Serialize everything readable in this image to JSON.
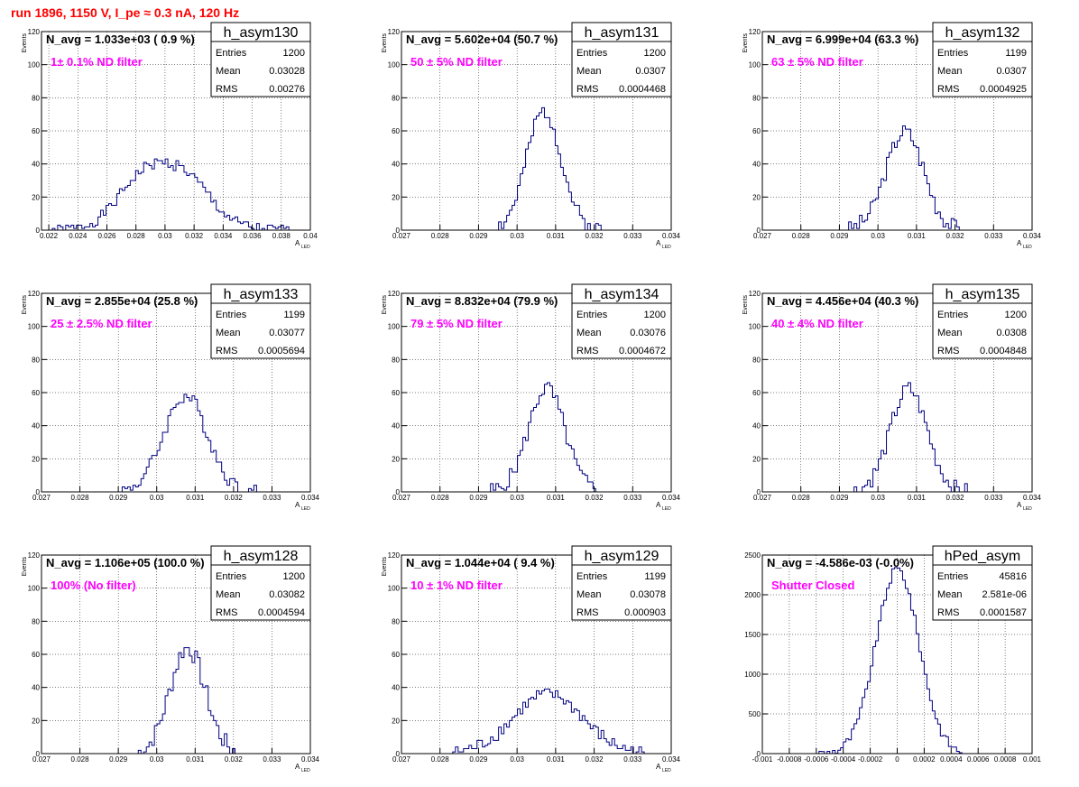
{
  "title": "run 1896,  1150 V, I_pe ≈ 0.3 nA, 120 Hz",
  "colors": {
    "title": "#ff0000",
    "line": "#000080",
    "annotation": "#ff00ff",
    "grid": "#000000"
  },
  "chart_data": [
    {
      "type": "histogram",
      "name": "h_asym130",
      "navg": "N_avg = 1.033e+03 ( 0.9 %)",
      "filter": "1± 0.1% ND filter",
      "stats": {
        "entries": "1200",
        "mean": "0.03028",
        "rms": "0.00276"
      },
      "xlim": [
        0.0215,
        0.04
      ],
      "ylim": [
        0,
        120
      ],
      "xticks": [
        0.022,
        0.024,
        0.026,
        0.028,
        0.03,
        0.032,
        0.034,
        0.036,
        0.038,
        0.04
      ],
      "xticklabels": [
        "0.022",
        "0.024",
        "0.026",
        "0.028",
        "0.03",
        "0.032",
        "0.034",
        "0.036",
        "0.038",
        "0.04"
      ],
      "yticks": [
        0,
        20,
        40,
        60,
        80,
        100,
        120
      ],
      "yticklabels": [
        "0",
        "20",
        "40",
        "60",
        "80",
        "100",
        "120"
      ],
      "xlabel": "A",
      "xlabel_sub": "LED",
      "ylabel": "Events",
      "shape": {
        "kind": "double",
        "c1": 0.0285,
        "s1": 0.0018,
        "a1": 30,
        "c2": 0.0315,
        "s2": 0.0018,
        "a2": 28,
        "xmin": 0.0222,
        "xmax": 0.0385,
        "bins": 100,
        "noise": 3.5,
        "seed": 1
      }
    },
    {
      "type": "histogram",
      "name": "h_asym131",
      "navg": "N_avg = 5.602e+04 (50.7 %)",
      "filter": "50 ± 5% ND filter",
      "stats": {
        "entries": "1200",
        "mean": "0.0307",
        "rms": "0.0004468"
      },
      "xlim": [
        0.027,
        0.034
      ],
      "ylim": [
        0,
        120
      ],
      "xticks": [
        0.027,
        0.028,
        0.029,
        0.03,
        0.031,
        0.032,
        0.033,
        0.034
      ],
      "xticklabels": [
        "0.027",
        "0.028",
        "0.029",
        "0.03",
        "0.031",
        "0.032",
        "0.033",
        "0.034"
      ],
      "yticks": [
        0,
        20,
        40,
        60,
        80,
        100,
        120
      ],
      "yticklabels": [
        "0",
        "20",
        "40",
        "60",
        "80",
        "100",
        "120"
      ],
      "xlabel": "A",
      "xlabel_sub": "LED",
      "ylabel": "Events",
      "shape": {
        "kind": "gauss",
        "c1": 0.0307,
        "s1": 0.00045,
        "a1": 72,
        "xmin": 0.0293,
        "xmax": 0.0322,
        "bins": 100,
        "noise": 5,
        "seed": 2
      }
    },
    {
      "type": "histogram",
      "name": "h_asym132",
      "navg": "N_avg = 6.999e+04 (63.3 %)",
      "filter": "63 ± 5% ND filter",
      "stats": {
        "entries": "1199",
        "mean": "0.0307",
        "rms": "0.0004925"
      },
      "xlim": [
        0.027,
        0.034
      ],
      "ylim": [
        0,
        120
      ],
      "xticks": [
        0.027,
        0.028,
        0.029,
        0.03,
        0.031,
        0.032,
        0.033,
        0.034
      ],
      "xticklabels": [
        "0.027",
        "0.028",
        "0.029",
        "0.03",
        "0.031",
        "0.032",
        "0.033",
        "0.034"
      ],
      "yticks": [
        0,
        20,
        40,
        60,
        80,
        100,
        120
      ],
      "yticklabels": [
        "0",
        "20",
        "40",
        "60",
        "80",
        "100",
        "120"
      ],
      "xlabel": "A",
      "xlabel_sub": "LED",
      "ylabel": "Events",
      "shape": {
        "kind": "gauss",
        "c1": 0.0307,
        "s1": 0.00049,
        "a1": 60,
        "xmin": 0.0292,
        "xmax": 0.0322,
        "bins": 100,
        "noise": 5,
        "seed": 3
      }
    },
    {
      "type": "histogram",
      "name": "h_asym133",
      "navg": "N_avg = 2.855e+04 (25.8 %)",
      "filter": "25 ± 2.5% ND filter",
      "stats": {
        "entries": "1199",
        "mean": "0.03077",
        "rms": "0.0005694"
      },
      "xlim": [
        0.027,
        0.034
      ],
      "ylim": [
        0,
        120
      ],
      "xticks": [
        0.027,
        0.028,
        0.029,
        0.03,
        0.031,
        0.032,
        0.033,
        0.034
      ],
      "xticklabels": [
        "0.027",
        "0.028",
        "0.029",
        "0.03",
        "0.031",
        "0.032",
        "0.033",
        "0.034"
      ],
      "yticks": [
        0,
        20,
        40,
        60,
        80,
        100,
        120
      ],
      "yticklabels": [
        "0",
        "20",
        "40",
        "60",
        "80",
        "100",
        "120"
      ],
      "xlabel": "A",
      "xlabel_sub": "LED",
      "ylabel": "Events",
      "shape": {
        "kind": "gauss",
        "c1": 0.03075,
        "s1": 0.00057,
        "a1": 58,
        "xmin": 0.029,
        "xmax": 0.0326,
        "bins": 100,
        "noise": 4.5,
        "seed": 4
      }
    },
    {
      "type": "histogram",
      "name": "h_asym134",
      "navg": "N_avg = 8.832e+04 (79.9 %)",
      "filter": "79 ± 5% ND filter",
      "stats": {
        "entries": "1200",
        "mean": "0.03076",
        "rms": "0.0004672"
      },
      "xlim": [
        0.027,
        0.034
      ],
      "ylim": [
        0,
        120
      ],
      "xticks": [
        0.027,
        0.028,
        0.029,
        0.03,
        0.031,
        0.032,
        0.033,
        0.034
      ],
      "xticklabels": [
        "0.027",
        "0.028",
        "0.029",
        "0.03",
        "0.031",
        "0.032",
        "0.033",
        "0.034"
      ],
      "yticks": [
        0,
        20,
        40,
        60,
        80,
        100,
        120
      ],
      "yticklabels": [
        "0",
        "20",
        "40",
        "60",
        "80",
        "100",
        "120"
      ],
      "xlabel": "A",
      "xlabel_sub": "LED",
      "ylabel": "Events",
      "shape": {
        "kind": "gauss",
        "c1": 0.03076,
        "s1": 0.00047,
        "a1": 63,
        "xmin": 0.0293,
        "xmax": 0.0322,
        "bins": 100,
        "noise": 5,
        "seed": 5
      }
    },
    {
      "type": "histogram",
      "name": "h_asym135",
      "navg": "N_avg = 4.456e+04 (40.3 %)",
      "filter": "40 ± 4% ND filter",
      "stats": {
        "entries": "1200",
        "mean": "0.0308",
        "rms": "0.0004848"
      },
      "xlim": [
        0.027,
        0.034
      ],
      "ylim": [
        0,
        120
      ],
      "xticks": [
        0.027,
        0.028,
        0.029,
        0.03,
        0.031,
        0.032,
        0.033,
        0.034
      ],
      "xticklabels": [
        "0.027",
        "0.028",
        "0.029",
        "0.03",
        "0.031",
        "0.032",
        "0.033",
        "0.034"
      ],
      "yticks": [
        0,
        20,
        40,
        60,
        80,
        100,
        120
      ],
      "yticklabels": [
        "0",
        "20",
        "40",
        "60",
        "80",
        "100",
        "120"
      ],
      "xlabel": "A",
      "xlabel_sub": "LED",
      "ylabel": "Events",
      "shape": {
        "kind": "gauss",
        "c1": 0.0308,
        "s1": 0.00048,
        "a1": 62,
        "xmin": 0.0294,
        "xmax": 0.0324,
        "bins": 100,
        "noise": 5,
        "seed": 6
      }
    },
    {
      "type": "histogram",
      "name": "h_asym128",
      "navg": "N_avg = 1.106e+05 (100.0 %)",
      "filter": "100% (No filter)",
      "stats": {
        "entries": "1200",
        "mean": "0.03082",
        "rms": "0.0004594"
      },
      "xlim": [
        0.027,
        0.034
      ],
      "ylim": [
        0,
        120
      ],
      "xticks": [
        0.027,
        0.028,
        0.029,
        0.03,
        0.031,
        0.032,
        0.033,
        0.034
      ],
      "xticklabels": [
        "0.027",
        "0.028",
        "0.029",
        "0.03",
        "0.031",
        "0.032",
        "0.033",
        "0.034"
      ],
      "yticks": [
        0,
        20,
        40,
        60,
        80,
        100,
        120
      ],
      "yticklabels": [
        "0",
        "20",
        "40",
        "60",
        "80",
        "100",
        "120"
      ],
      "xlabel": "A",
      "xlabel_sub": "LED",
      "ylabel": "Events",
      "shape": {
        "kind": "gauss",
        "c1": 0.0308,
        "s1": 0.00046,
        "a1": 64,
        "xmin": 0.0295,
        "xmax": 0.0322,
        "bins": 100,
        "noise": 6,
        "seed": 7
      }
    },
    {
      "type": "histogram",
      "name": "h_asym129",
      "navg": "N_avg = 1.044e+04 ( 9.4 %)",
      "filter": "10 ± 1% ND filter",
      "stats": {
        "entries": "1199",
        "mean": "0.03078",
        "rms": "0.000903"
      },
      "xlim": [
        0.027,
        0.034
      ],
      "ylim": [
        0,
        120
      ],
      "xticks": [
        0.027,
        0.028,
        0.029,
        0.03,
        0.031,
        0.032,
        0.033,
        0.034
      ],
      "xticklabels": [
        "0.027",
        "0.028",
        "0.029",
        "0.03",
        "0.031",
        "0.032",
        "0.033",
        "0.034"
      ],
      "yticks": [
        0,
        20,
        40,
        60,
        80,
        100,
        120
      ],
      "yticklabels": [
        "0",
        "20",
        "40",
        "60",
        "80",
        "100",
        "120"
      ],
      "xlabel": "A",
      "xlabel_sub": "LED",
      "ylabel": "Events",
      "shape": {
        "kind": "gauss",
        "c1": 0.0308,
        "s1": 0.0009,
        "a1": 36,
        "xmin": 0.0283,
        "xmax": 0.0333,
        "bins": 100,
        "noise": 4,
        "seed": 8
      }
    },
    {
      "type": "histogram",
      "name": "hPed_asym",
      "navg": "N_avg = -4.586e-03 (-0.0%)",
      "filter": "Shutter Closed",
      "stats": {
        "entries": "45816",
        "mean": "2.581e-06",
        "rms": "0.0001587"
      },
      "xlim": [
        -0.001,
        0.001
      ],
      "ylim": [
        0,
        2500
      ],
      "xticks": [
        -0.001,
        -0.0008,
        -0.0006,
        -0.0004,
        -0.0002,
        0,
        0.0002,
        0.0004,
        0.0006,
        0.0008,
        0.001
      ],
      "xticklabels": [
        "-0.001",
        "-0.0008",
        "-0.0006",
        "-0.0004",
        "-0.0002",
        "0",
        "0.0002",
        "0.0004",
        "0.0006",
        "0.0008",
        "0.001"
      ],
      "yticks": [
        0,
        500,
        1000,
        1500,
        2000,
        2500
      ],
      "yticklabels": [
        "0",
        "500",
        "1000",
        "1500",
        "2000",
        "2500"
      ],
      "xlabel": "",
      "xlabel_sub": "",
      "ylabel": "",
      "shape": {
        "kind": "gauss",
        "c1": 2.6e-06,
        "s1": 0.000159,
        "a1": 2320,
        "xmin": -0.0006,
        "xmax": 0.00048,
        "bins": 100,
        "noise": 60,
        "seed": 9
      }
    }
  ]
}
